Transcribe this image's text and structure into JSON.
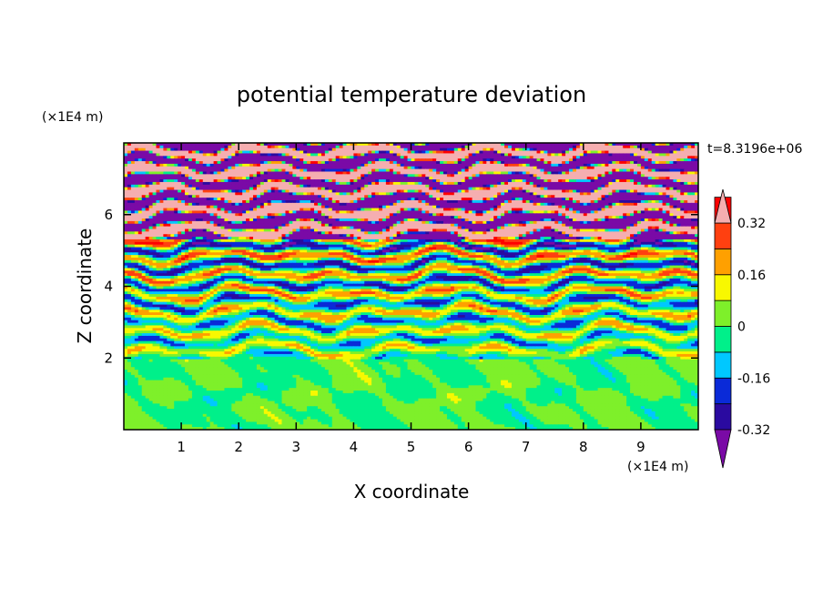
{
  "chart_data": {
    "type": "heatmap",
    "title": "potential temperature deviation",
    "xlabel": "X coordinate",
    "ylabel": "Z coordinate",
    "x_unit": "(×1E4 m)",
    "y_unit": "(×1E4 m)",
    "time_label": "t=8.3196e+06",
    "xlim": [
      0,
      10
    ],
    "ylim": [
      0,
      8
    ],
    "x_ticks": [
      "1",
      "2",
      "3",
      "4",
      "5",
      "6",
      "7",
      "8",
      "9"
    ],
    "y_ticks": [
      "2",
      "4",
      "6"
    ],
    "colorbar": {
      "levels": [
        -0.4,
        -0.32,
        -0.24,
        -0.16,
        -0.08,
        0,
        0.08,
        0.16,
        0.24,
        0.32,
        0.4
      ],
      "labels": [
        "0.32",
        "0.16",
        "0",
        "-0.16",
        "-0.32"
      ],
      "label_values": [
        0.32,
        0.16,
        0,
        -0.16,
        -0.32
      ],
      "colors": [
        "#7a0aa6",
        "#2a0aa0",
        "#0a2ad8",
        "#00c8ff",
        "#00f08a",
        "#7ef02a",
        "#f8f800",
        "#ffa000",
        "#ff4010",
        "#ff0000",
        "#f5aeb0"
      ],
      "over_color": "#f5aeb0",
      "under_color": "#7a0aa6"
    },
    "regions": [
      {
        "z_range": [
          0,
          2
        ],
        "description": "mostly near-zero values (green, light green)"
      },
      {
        "z_range": [
          2,
          5.3
        ],
        "description": "mixed layered positive and negative deviations"
      },
      {
        "z_range": [
          5.3,
          8
        ],
        "description": "alternating bands of strongly negative (purple) and strongly positive (pink) values"
      }
    ],
    "grid": false
  }
}
